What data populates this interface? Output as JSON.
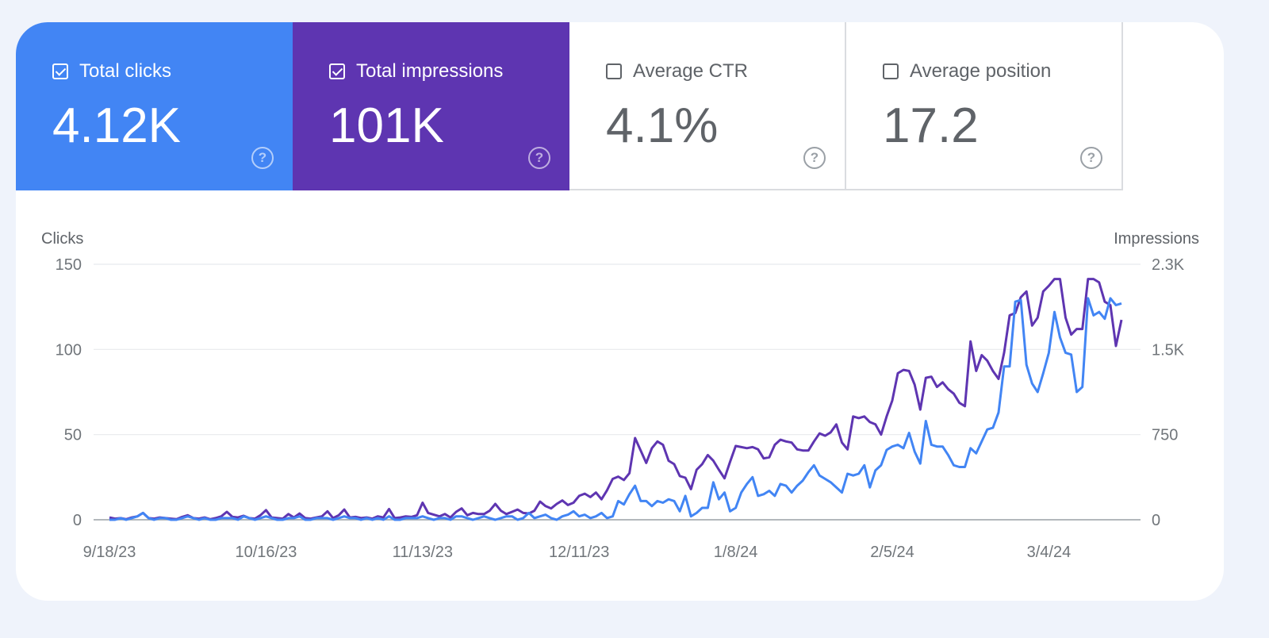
{
  "metrics": [
    {
      "label": "Total clicks",
      "value": "4.12K",
      "checked": true,
      "color": "#4285f4"
    },
    {
      "label": "Total impressions",
      "value": "101K",
      "checked": true,
      "color": "#5e35b1"
    },
    {
      "label": "Average CTR",
      "value": "4.1%",
      "checked": false
    },
    {
      "label": "Average position",
      "value": "17.2",
      "checked": false
    }
  ],
  "help_glyph": "?",
  "chart_data": {
    "type": "line",
    "x_start": "9/18/23",
    "x_end": "3/17/24",
    "x_tick_labels": [
      "9/18/23",
      "10/16/23",
      "11/13/23",
      "12/11/23",
      "1/8/24",
      "2/5/24",
      "3/4/24"
    ],
    "x_tick_days": [
      0,
      28,
      56,
      84,
      112,
      140,
      168
    ],
    "y_left": {
      "label": "Clicks",
      "ticks": [
        0,
        50,
        100,
        150
      ],
      "tick_labels": [
        "0",
        "50",
        "100",
        "150"
      ],
      "range": [
        0,
        150
      ]
    },
    "y_right": {
      "label": "Impressions",
      "ticks": [
        0,
        750,
        1500,
        2250
      ],
      "tick_labels": [
        "0",
        "750",
        "1.5K",
        "2.3K"
      ],
      "range": [
        0,
        2250
      ]
    },
    "grid": true,
    "series": [
      {
        "name": "Total clicks",
        "axis": "left",
        "color": "#4285f4",
        "values": [
          0,
          0,
          1,
          0,
          1,
          2,
          4,
          1,
          0,
          1,
          1,
          0,
          0,
          1,
          2,
          1,
          0,
          1,
          0,
          0,
          1,
          1,
          1,
          0,
          2,
          1,
          0,
          1,
          2,
          1,
          0,
          0,
          1,
          1,
          2,
          0,
          0,
          1,
          1,
          1,
          0,
          1,
          2,
          1,
          1,
          0,
          1,
          0,
          1,
          0,
          2,
          0,
          0,
          1,
          1,
          1,
          2,
          1,
          0,
          1,
          1,
          0,
          2,
          2,
          1,
          0,
          1,
          2,
          1,
          0,
          1,
          2,
          2,
          0,
          1,
          4,
          1,
          2,
          3,
          1,
          0,
          2,
          3,
          5,
          2,
          3,
          1,
          2,
          4,
          1,
          2,
          11,
          9,
          15,
          20,
          11,
          11,
          8,
          11,
          10,
          12,
          11,
          5,
          14,
          2,
          4,
          7,
          7,
          22,
          12,
          16,
          5,
          7,
          16,
          21,
          25,
          14,
          15,
          17,
          14,
          21,
          20,
          16,
          20,
          23,
          28,
          32,
          26,
          24,
          22,
          19,
          16,
          27,
          26,
          27,
          32,
          19,
          29,
          32,
          41,
          43,
          44,
          42,
          51,
          40,
          33,
          58,
          44,
          43,
          43,
          38,
          32,
          31,
          31,
          42,
          39,
          46,
          53,
          54,
          63,
          90,
          90,
          128,
          129,
          91,
          80,
          75,
          86,
          98,
          122,
          107,
          98,
          97,
          75,
          78,
          130,
          120,
          122,
          118,
          130,
          126,
          127
        ]
      },
      {
        "name": "Total impressions",
        "axis": "right",
        "color": "#5e35b1",
        "values": [
          20,
          10,
          15,
          5,
          20,
          30,
          60,
          15,
          10,
          20,
          15,
          10,
          5,
          25,
          40,
          15,
          10,
          20,
          5,
          15,
          30,
          70,
          25,
          20,
          35,
          15,
          10,
          40,
          85,
          20,
          15,
          10,
          50,
          20,
          55,
          15,
          10,
          20,
          30,
          75,
          15,
          40,
          90,
          20,
          25,
          15,
          20,
          10,
          30,
          20,
          95,
          15,
          20,
          30,
          25,
          40,
          150,
          60,
          45,
          30,
          50,
          20,
          70,
          100,
          40,
          60,
          50,
          50,
          80,
          140,
          80,
          50,
          70,
          90,
          60,
          55,
          80,
          160,
          120,
          100,
          140,
          170,
          130,
          150,
          210,
          230,
          200,
          240,
          180,
          260,
          360,
          380,
          350,
          410,
          720,
          610,
          500,
          630,
          690,
          660,
          520,
          490,
          385,
          370,
          270,
          440,
          490,
          570,
          520,
          440,
          365,
          510,
          650,
          640,
          630,
          640,
          620,
          540,
          550,
          660,
          705,
          690,
          680,
          620,
          610,
          610,
          690,
          760,
          740,
          770,
          840,
          680,
          620,
          910,
          895,
          910,
          860,
          840,
          750,
          910,
          1050,
          1290,
          1320,
          1310,
          1190,
          970,
          1250,
          1260,
          1170,
          1210,
          1150,
          1110,
          1030,
          1000,
          1570,
          1310,
          1450,
          1400,
          1310,
          1240,
          1470,
          1800,
          1820,
          1960,
          2010,
          1710,
          1780,
          2010,
          2060,
          2120,
          2120,
          1780,
          1630,
          1680,
          1680,
          2120,
          2120,
          2090,
          1920,
          1890,
          1530,
          1760
        ]
      }
    ]
  }
}
